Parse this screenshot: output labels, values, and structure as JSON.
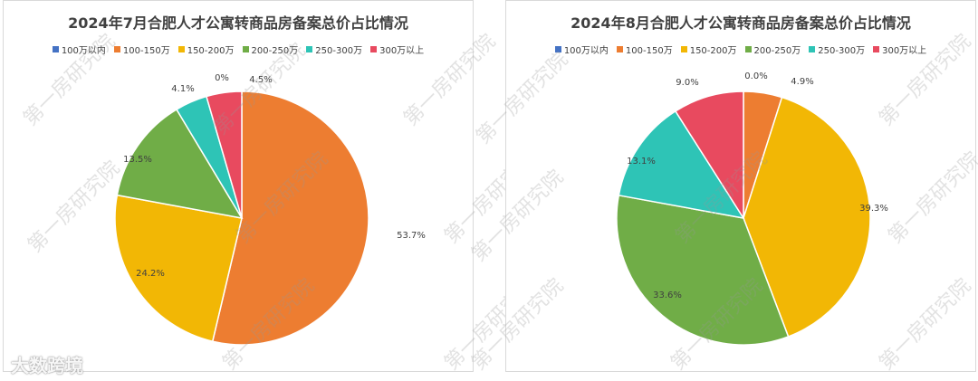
{
  "charts": [
    {
      "title": "2024年7月合肥人才公寓转商品房备案总价占比情况",
      "legend": [
        "100万以内",
        "100-150万",
        "150-200万",
        "200-250万",
        "250-300万",
        "300万以上"
      ]
    },
    {
      "title": "2024年8月合肥人才公寓转商品房备案总价占比情况",
      "legend": [
        "100万以内",
        "100-150万",
        "150-200万",
        "200-250万",
        "250-300万",
        "300万以上"
      ]
    }
  ],
  "colors": [
    "#4472c4",
    "#ed7d31",
    "#f2b705",
    "#70ad47",
    "#2ec4b6",
    "#e84a5f"
  ],
  "chart_data": [
    {
      "type": "pie",
      "title": "2024年7月合肥人才公寓转商品房备案总价占比情况",
      "categories": [
        "100万以内",
        "100-150万",
        "150-200万",
        "200-250万",
        "250-300万",
        "300万以上"
      ],
      "values": [
        0,
        53.7,
        24.2,
        13.5,
        4.1,
        4.5
      ],
      "data_labels": [
        "0%",
        "53.7%",
        "24.2%",
        "13.5%",
        "4.1%",
        "4.5%"
      ],
      "legend_position": "top"
    },
    {
      "type": "pie",
      "title": "2024年8月合肥人才公寓转商品房备案总价占比情况",
      "categories": [
        "100万以内",
        "100-150万",
        "150-200万",
        "200-250万",
        "250-300万",
        "300万以上"
      ],
      "values": [
        0.0,
        4.9,
        39.3,
        33.6,
        13.1,
        9.0
      ],
      "data_labels": [
        "0.0%",
        "4.9%",
        "39.3%",
        "33.6%",
        "13.1%",
        "9.0%"
      ],
      "legend_position": "top"
    }
  ],
  "watermark": "第一房研究院",
  "logo_text": "大数跨境"
}
